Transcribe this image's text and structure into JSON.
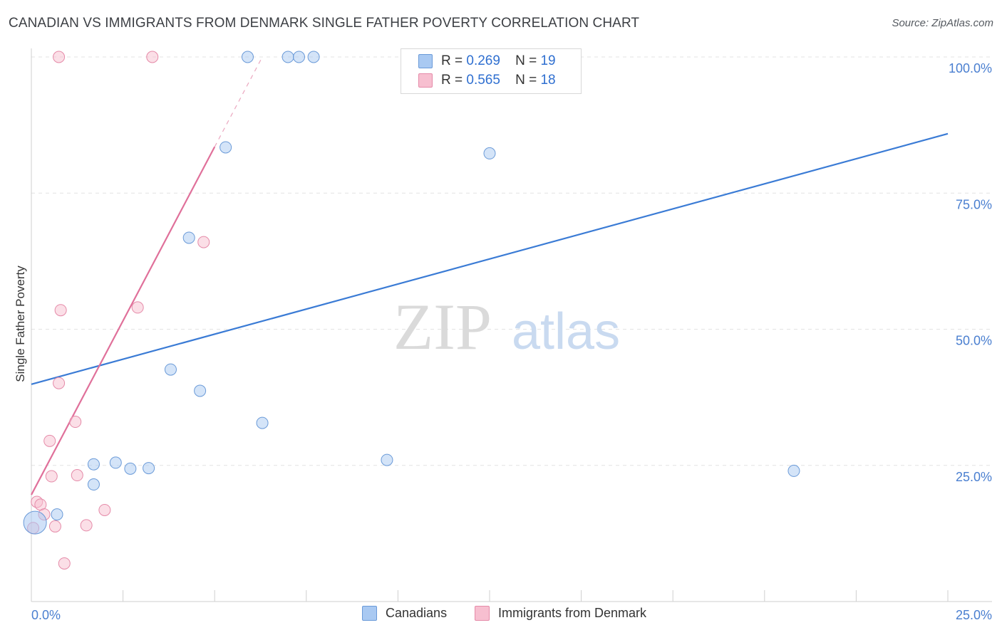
{
  "header": {
    "title": "CANADIAN VS IMMIGRANTS FROM DENMARK SINGLE FATHER POVERTY CORRELATION CHART",
    "source": "Source: ZipAtlas.com"
  },
  "watermark": {
    "zip": "ZIP",
    "atlas": "atlas"
  },
  "legend": {
    "rows": [
      {
        "r_label": "R =",
        "r_value": "0.269",
        "n_label": "N =",
        "n_value": "19",
        "color": "#a9c9f2"
      },
      {
        "r_label": "R =",
        "r_value": "0.565",
        "n_label": "N =",
        "n_value": "18",
        "color": "#f7bfd0"
      }
    ]
  },
  "bottom_legend": {
    "items": [
      {
        "label": "Canadians",
        "color": "#a9c9f2"
      },
      {
        "label": "Immigrants from Denmark",
        "color": "#f7bfd0"
      }
    ]
  },
  "chart_data": {
    "type": "scatter",
    "title": "CANADIAN VS IMMIGRANTS FROM DENMARK SINGLE FATHER POVERTY CORRELATION CHART",
    "xlabel": "",
    "ylabel": "Single Father Poverty",
    "xlim": [
      0,
      25
    ],
    "ylim": [
      0,
      100
    ],
    "x_tick_labels": [
      "0.0%",
      "25.0%"
    ],
    "y_tick_labels": [
      "25.0%",
      "50.0%",
      "75.0%",
      "100.0%"
    ],
    "y_ticks": [
      25,
      50,
      75,
      100
    ],
    "grid": true,
    "legend_position": "top-center",
    "series": [
      {
        "name": "Canadians",
        "color": "#a9c9f2",
        "stroke": "#6a9ad8",
        "points": [
          {
            "x": 0.1,
            "y": 14.5,
            "big": true
          },
          {
            "x": 0.7,
            "y": 16.0
          },
          {
            "x": 1.7,
            "y": 21.5
          },
          {
            "x": 1.7,
            "y": 25.2
          },
          {
            "x": 2.3,
            "y": 25.5
          },
          {
            "x": 2.7,
            "y": 24.4
          },
          {
            "x": 3.2,
            "y": 24.5
          },
          {
            "x": 3.8,
            "y": 42.6
          },
          {
            "x": 4.3,
            "y": 66.8
          },
          {
            "x": 4.6,
            "y": 38.7
          },
          {
            "x": 5.3,
            "y": 83.4
          },
          {
            "x": 5.9,
            "y": 100.0
          },
          {
            "x": 6.3,
            "y": 32.8
          },
          {
            "x": 7.0,
            "y": 100.0
          },
          {
            "x": 7.3,
            "y": 100.0
          },
          {
            "x": 7.7,
            "y": 100.0
          },
          {
            "x": 9.7,
            "y": 26.0
          },
          {
            "x": 12.5,
            "y": 82.3
          },
          {
            "x": 20.8,
            "y": 24.0
          }
        ],
        "trend": {
          "x0": 0,
          "y0": 39.9,
          "x1": 25,
          "y1": 85.9
        }
      },
      {
        "name": "Immigrants from Denmark",
        "color": "#f7bfd0",
        "stroke": "#e58aa8",
        "points": [
          {
            "x": 0.05,
            "y": 13.5
          },
          {
            "x": 0.15,
            "y": 18.3
          },
          {
            "x": 0.25,
            "y": 17.8
          },
          {
            "x": 0.35,
            "y": 16.0
          },
          {
            "x": 0.5,
            "y": 29.5
          },
          {
            "x": 0.55,
            "y": 23.0
          },
          {
            "x": 0.65,
            "y": 13.8
          },
          {
            "x": 0.75,
            "y": 40.1
          },
          {
            "x": 0.75,
            "y": 100.0
          },
          {
            "x": 0.8,
            "y": 53.5
          },
          {
            "x": 0.9,
            "y": 7.0
          },
          {
            "x": 1.2,
            "y": 33.0
          },
          {
            "x": 1.25,
            "y": 23.2
          },
          {
            "x": 1.5,
            "y": 14.0
          },
          {
            "x": 2.0,
            "y": 16.8
          },
          {
            "x": 2.9,
            "y": 54.0
          },
          {
            "x": 3.3,
            "y": 100.0
          },
          {
            "x": 4.7,
            "y": 66.0
          }
        ],
        "trend": {
          "x0": 0,
          "y0": 19.6,
          "x1": 5,
          "y1": 83.5
        },
        "trend_dashed": {
          "x0": 5,
          "y0": 83.5,
          "x1": 6.3,
          "y1": 100.0
        }
      }
    ]
  }
}
